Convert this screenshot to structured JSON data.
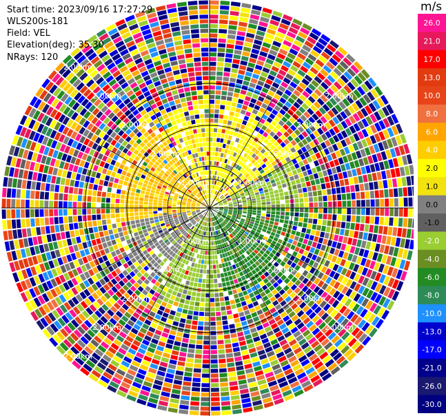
{
  "header": {
    "start_time": "Start time: 2023/09/16 17:27:29",
    "instrument": "WLS200s-181",
    "field": "Field: VEL",
    "elevation": "Elevation(deg): 35.30",
    "nrays": "NRays: 120"
  },
  "colorbar": {
    "unit": "m/s",
    "ticks": [
      "26.0",
      "21.0",
      "17.0",
      "13.0",
      "10.0",
      "8.0",
      "6.0",
      "4.0",
      "2.0",
      "1.0",
      "0.0",
      "-1.0",
      "-2.0",
      "-4.0",
      "-6.0",
      "-8.0",
      "-10.0",
      "-13.0",
      "-17.0",
      "-21.0",
      "-26.0",
      "-30.0"
    ],
    "colors": [
      "#ff1493",
      "#e6195a",
      "#ff0000",
      "#e23b10",
      "#e8441a",
      "#f07040",
      "#ffa500",
      "#ffcc00",
      "#ffff00",
      "#f2e20f",
      "#808080",
      "#606060",
      "#9acd32",
      "#6b8e23",
      "#228b22",
      "#2e8b57",
      "#1e90ff",
      "#0000cd",
      "#0000ff",
      "#00008b",
      "#191970",
      "#000080"
    ]
  },
  "chart_data": {
    "type": "ppi",
    "field": "VEL",
    "units": "m/s",
    "range_ring_labels": {
      "ring1": "1.00km",
      "ring2": "2.00km",
      "ring3": "2.00km",
      "ring4": "2.00km",
      "ring5": "1.00km",
      "ring6": "3.00km",
      "ring7": "2.00km"
    },
    "grid": true,
    "sectors": [
      {
        "from_deg": 0,
        "to_deg": 60,
        "value": 2.0
      },
      {
        "from_deg": 60,
        "to_deg": 90,
        "value": -2.0
      },
      {
        "from_deg": 90,
        "to_deg": 170,
        "value": -6.0
      },
      {
        "from_deg": 170,
        "to_deg": 215,
        "value": -2.0
      },
      {
        "from_deg": 215,
        "to_deg": 260,
        "value": 0.0
      },
      {
        "from_deg": 260,
        "to_deg": 330,
        "value": 4.0
      },
      {
        "from_deg": 330,
        "to_deg": 360,
        "value": 2.0
      }
    ]
  }
}
